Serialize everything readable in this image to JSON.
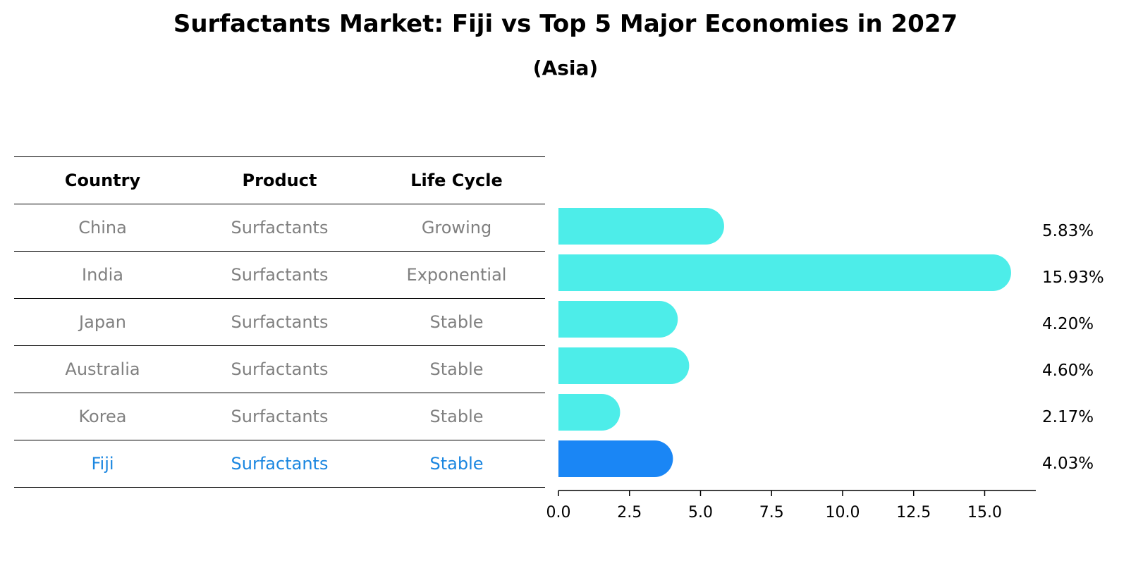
{
  "title": "Surfactants Market: Fiji vs Top 5 Major Economies in 2027",
  "subtitle": "(Asia)",
  "table": {
    "headers": [
      "Country",
      "Product",
      "Life Cycle"
    ],
    "rows": [
      [
        "China",
        "Surfactants",
        "Growing"
      ],
      [
        "India",
        "Surfactants",
        "Exponential"
      ],
      [
        "Japan",
        "Surfactants",
        "Stable"
      ],
      [
        "Australia",
        "Surfactants",
        "Stable"
      ],
      [
        "Korea",
        "Surfactants",
        "Stable"
      ],
      [
        "Fiji",
        "Surfactants",
        "Stable"
      ]
    ],
    "highlight_row": 5
  },
  "colors": {
    "bar": "#4dede9",
    "highlight_bar": "#1a86f5",
    "highlight_text": "#1a86e0",
    "muted_text": "#808080"
  },
  "chart_data": {
    "type": "bar",
    "orientation": "horizontal",
    "categories": [
      "China",
      "India",
      "Japan",
      "Australia",
      "Korea",
      "Fiji"
    ],
    "values": [
      5.83,
      15.93,
      4.2,
      4.6,
      2.17,
      4.03
    ],
    "value_labels": [
      "5.83%",
      "15.93%",
      "4.20%",
      "4.60%",
      "2.17%",
      "4.03%"
    ],
    "xlim": [
      0,
      16.8
    ],
    "xticks": [
      0,
      2.5,
      5,
      7.5,
      10,
      12.5,
      15
    ],
    "xtick_labels": [
      "0.0",
      "2.5",
      "5.0",
      "7.5",
      "10.0",
      "12.5",
      "15.0"
    ],
    "highlight": "Fiji",
    "grid": false
  }
}
